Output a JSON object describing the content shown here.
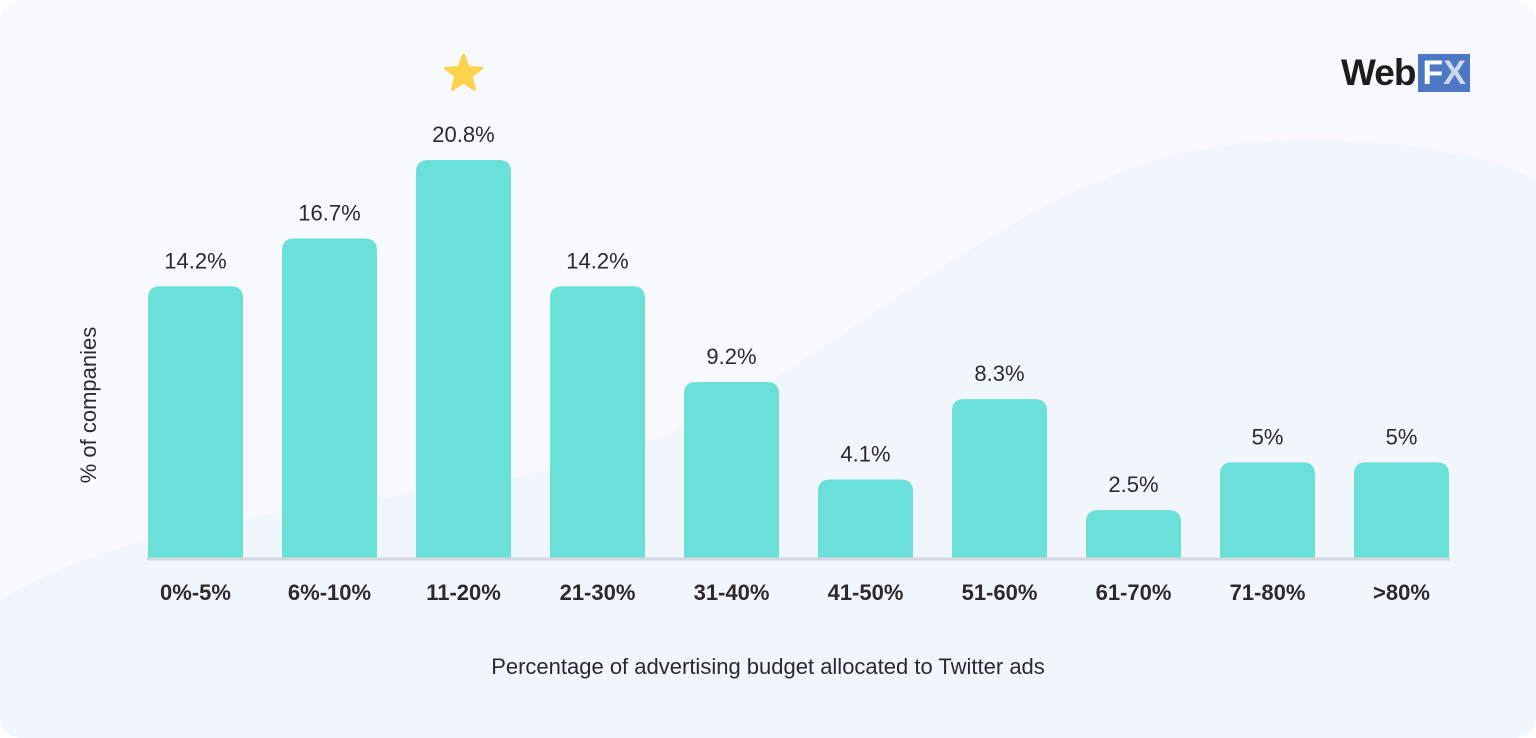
{
  "chart_data": {
    "type": "bar",
    "title": "",
    "xlabel": "Percentage of advertising budget allocated to Twitter ads",
    "ylabel": "% of companies",
    "categories": [
      "0%-5%",
      "6%-10%",
      "11-20%",
      "21-30%",
      "31-40%",
      "41-50%",
      "51-60%",
      "61-70%",
      "71-80%",
      ">80%"
    ],
    "values": [
      14.2,
      16.7,
      20.8,
      14.2,
      9.2,
      4.1,
      8.3,
      2.5,
      5,
      5
    ],
    "data_labels": [
      "14.2%",
      "16.7%",
      "20.8%",
      "14.2%",
      "9.2%",
      "4.1%",
      "8.3%",
      "2.5%",
      "5%",
      "5%"
    ],
    "highlight_index": 2,
    "highlight_icon": "star-icon",
    "ylim": [
      0,
      20.8
    ],
    "grid": false,
    "colors": {
      "bar": "#6ae0d8",
      "axis": "#d3d6df",
      "highlight": "#fcd34d",
      "text": "#2b2b2e"
    }
  },
  "logo": {
    "text_a": "Web",
    "text_b": "F",
    "text_c": "X"
  }
}
